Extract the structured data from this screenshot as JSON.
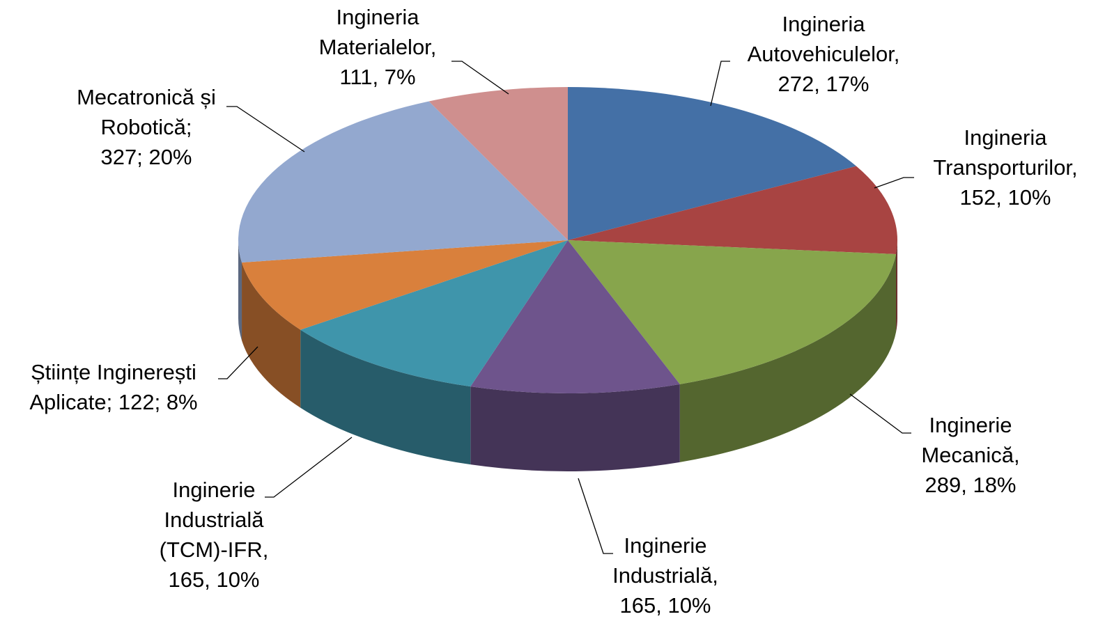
{
  "chart_data": {
    "type": "pie",
    "values": [
      272,
      152,
      289,
      165,
      165,
      122,
      327,
      111
    ],
    "value_labels": [
      [
        "Ingineria",
        "Autovehiculelor,",
        "272, 17%"
      ],
      [
        "Ingineria",
        "Transporturilor,",
        "152, 10%"
      ],
      [
        "Inginerie",
        "Mecanică,",
        "289, 18%"
      ],
      [
        "Inginerie",
        "Industrială,",
        "165, 10%"
      ],
      [
        "Inginerie",
        "Industrială",
        "(TCM)-IFR,",
        "165, 10%"
      ],
      [
        "Științe Inginerești",
        "Aplicate; 122; 8%"
      ],
      [
        "Mecatronică și",
        "Robotică;",
        "327; 20%"
      ],
      [
        "Ingineria",
        "Materialelor,",
        "111, 7%"
      ]
    ],
    "colors": [
      "#4470a6",
      "#a84442",
      "#87a54c",
      "#6e548c",
      "#3f95ab",
      "#d9803c",
      "#93a8cf",
      "#cf8f8e"
    ]
  }
}
